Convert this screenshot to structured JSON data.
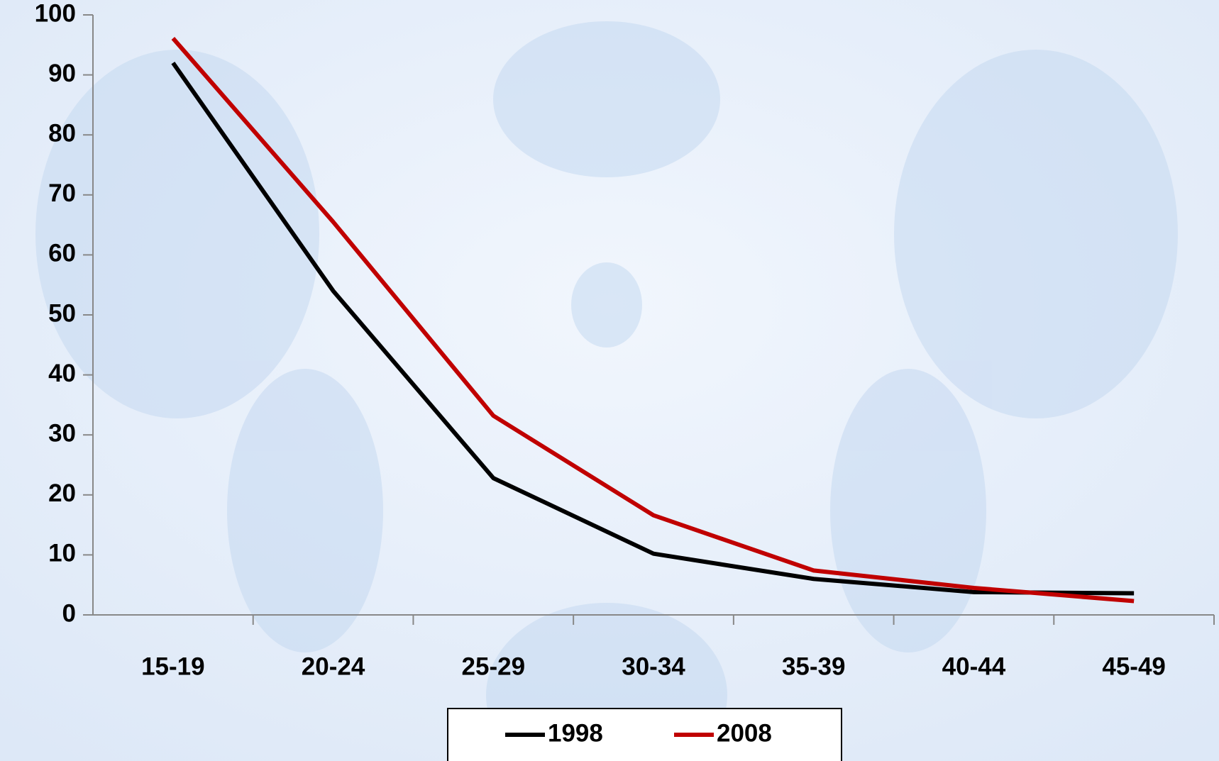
{
  "chart_data": {
    "type": "line",
    "categories": [
      "15-19",
      "20-24",
      "25-29",
      "30-34",
      "35-39",
      "40-44",
      "45-49"
    ],
    "series": [
      {
        "name": "1998",
        "color": "#000000",
        "values": [
          92,
          54,
          22.8,
          10.2,
          6,
          3.8,
          3.6
        ]
      },
      {
        "name": "2008",
        "color": "#c00000",
        "values": [
          96.1,
          65.5,
          33.2,
          16.6,
          7.4,
          4.5,
          2.3
        ]
      }
    ],
    "ylim": [
      0,
      100
    ],
    "yticks": [
      0,
      10,
      20,
      30,
      40,
      50,
      60,
      70,
      80,
      90,
      100
    ],
    "grid": false,
    "legend": "bottom"
  }
}
